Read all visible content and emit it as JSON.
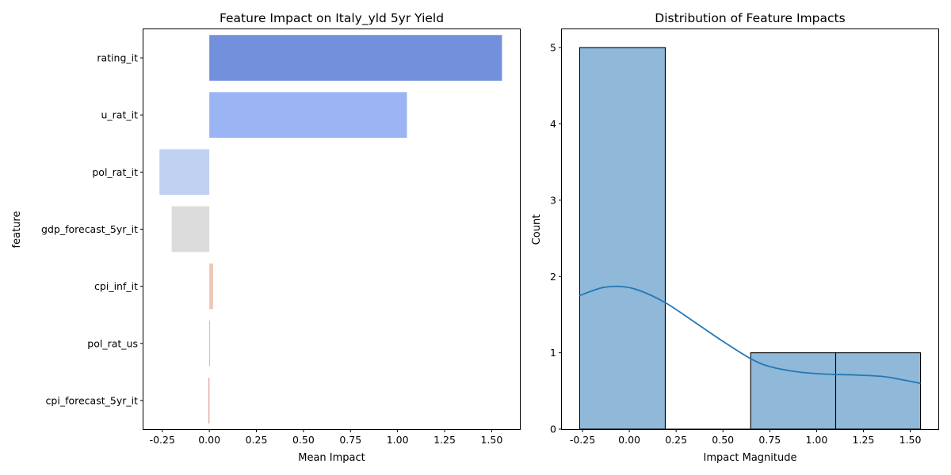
{
  "chart_data": [
    {
      "type": "bar",
      "orientation": "horizontal",
      "title": "Feature Impact on Italy_yld 5yr Yield",
      "xlabel": "Mean Impact",
      "ylabel": "feature",
      "categories": [
        "rating_it",
        "u_rat_it",
        "pol_rat_it",
        "gdp_forecast_5yr_it",
        "cpi_inf_it",
        "pol_rat_us",
        "cpi_forecast_5yr_it"
      ],
      "values": [
        1.555,
        1.05,
        -0.265,
        -0.2,
        0.02,
        0.003,
        -0.003
      ],
      "colors": [
        "#7390dc",
        "#9bb4f3",
        "#c1d1f1",
        "#dcdcdc",
        "#eec8b4",
        "#e8a58f",
        "#d06a5c"
      ],
      "xlim": [
        -0.35,
        1.65
      ],
      "xticks": [
        "-0.25",
        "0.00",
        "0.25",
        "0.50",
        "0.75",
        "1.00",
        "1.25",
        "1.50"
      ],
      "grid": false
    },
    {
      "type": "histogram",
      "title": "Distribution of Feature Impacts",
      "xlabel": "Impact Magnitude",
      "ylabel": "Count",
      "bins": [
        {
          "start": -0.265,
          "end": 0.192,
          "count": 5
        },
        {
          "start": 0.192,
          "end": 0.648,
          "count": 0
        },
        {
          "start": 0.648,
          "end": 1.102,
          "count": 1
        },
        {
          "start": 1.102,
          "end": 1.555,
          "count": 1
        }
      ],
      "bar_color": "#8fb8d9",
      "kde": {
        "color": "#2378b5",
        "x": [
          -0.265,
          -0.15,
          -0.05,
          0.05,
          0.19,
          0.35,
          0.5,
          0.65,
          0.75,
          0.9,
          1.05,
          1.2,
          1.35,
          1.45,
          1.555
        ],
        "y": [
          1.75,
          1.85,
          1.87,
          1.82,
          1.66,
          1.4,
          1.15,
          0.92,
          0.82,
          0.75,
          0.72,
          0.71,
          0.69,
          0.65,
          0.6
        ]
      },
      "xlim": [
        -0.36,
        1.65
      ],
      "ylim": [
        0,
        5.24
      ],
      "xticks": [
        "-0.25",
        "0.00",
        "0.25",
        "0.50",
        "0.75",
        "1.00",
        "1.25",
        "1.50"
      ],
      "yticks": [
        "0",
        "1",
        "2",
        "3",
        "4",
        "5"
      ],
      "grid": false
    }
  ]
}
